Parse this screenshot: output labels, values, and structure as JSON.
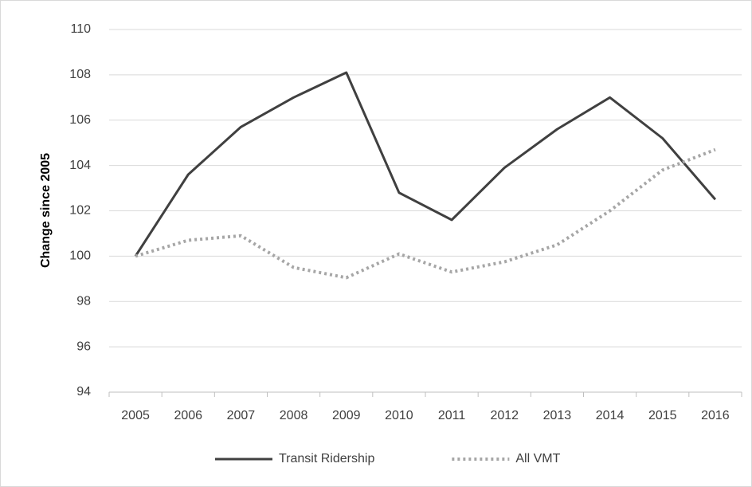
{
  "chart_data": {
    "type": "line",
    "y_label": "Change since 2005",
    "categories": [
      "2005",
      "2006",
      "2007",
      "2008",
      "2009",
      "2010",
      "2011",
      "2012",
      "2013",
      "2014",
      "2015",
      "2016"
    ],
    "series": [
      {
        "name": "Transit Ridership",
        "color": "#404040",
        "dash": "solid",
        "values": [
          100,
          103.6,
          105.7,
          107.0,
          108.1,
          102.8,
          101.6,
          103.9,
          105.6,
          107.0,
          105.2,
          102.5
        ]
      },
      {
        "name": "All VMT",
        "color": "#a6a6a6",
        "dash": "dotted",
        "values": [
          100,
          100.7,
          100.9,
          99.5,
          99.05,
          100.1,
          99.3,
          99.75,
          100.5,
          102.0,
          103.8,
          104.7
        ]
      }
    ],
    "ylim": [
      94,
      110
    ],
    "yticks": [
      94,
      96,
      98,
      100,
      102,
      104,
      106,
      108,
      110
    ],
    "grid": true,
    "legend": "bottom"
  }
}
